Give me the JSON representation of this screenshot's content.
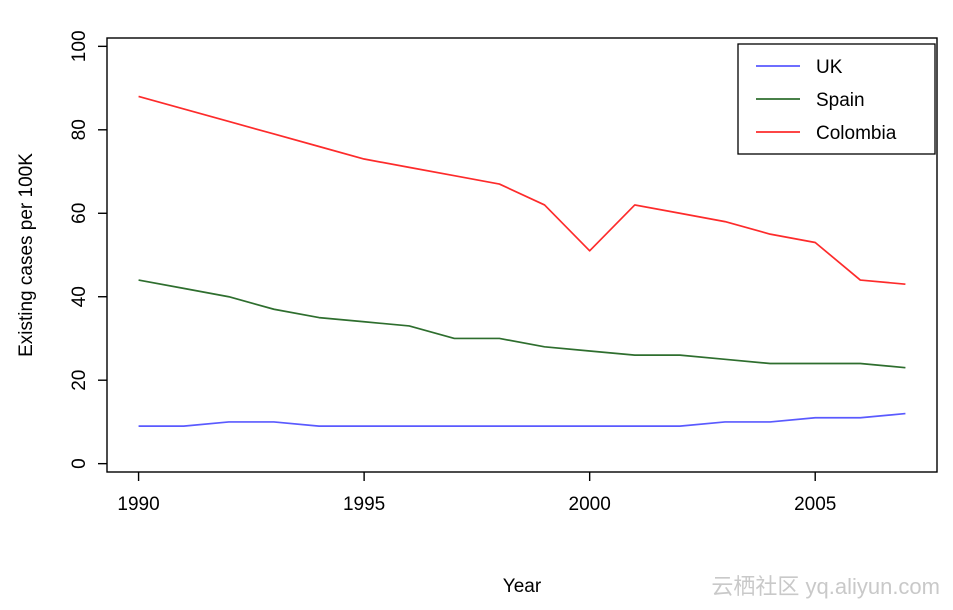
{
  "chart_data": {
    "type": "line",
    "title": "",
    "xlabel": "Year",
    "ylabel": "Existing cases per 100K",
    "x": [
      1990,
      1991,
      1992,
      1993,
      1994,
      1995,
      1996,
      1997,
      1998,
      1999,
      2000,
      2001,
      2002,
      2003,
      2004,
      2005,
      2006,
      2007
    ],
    "series": [
      {
        "name": "UK",
        "color": "#5a5aff",
        "values": [
          9,
          9,
          10,
          10,
          9,
          9,
          9,
          9,
          9,
          9,
          9,
          9,
          9,
          10,
          10,
          11,
          11,
          12
        ]
      },
      {
        "name": "Spain",
        "color": "#2e6e2e",
        "values": [
          44,
          42,
          40,
          37,
          35,
          34,
          33,
          30,
          30,
          28,
          27,
          26,
          26,
          25,
          24,
          24,
          24,
          23
        ]
      },
      {
        "name": "Colombia",
        "color": "#fd2b2b",
        "values": [
          88,
          85,
          82,
          79,
          76,
          73,
          71,
          69,
          67,
          62,
          51,
          62,
          60,
          58,
          55,
          53,
          44,
          43
        ]
      }
    ],
    "xticks": [
      1990,
      1995,
      2000,
      2005
    ],
    "yticks": [
      0,
      20,
      40,
      60,
      80,
      100
    ],
    "xlim": [
      1989.3,
      2007.7
    ],
    "ylim": [
      -2,
      102
    ],
    "grid": false,
    "legend_position": "top-right",
    "legend_entries": [
      "UK",
      "Spain",
      "Colombia"
    ]
  },
  "watermark": {
    "text": "云栖社区 yq.aliyun.com"
  }
}
